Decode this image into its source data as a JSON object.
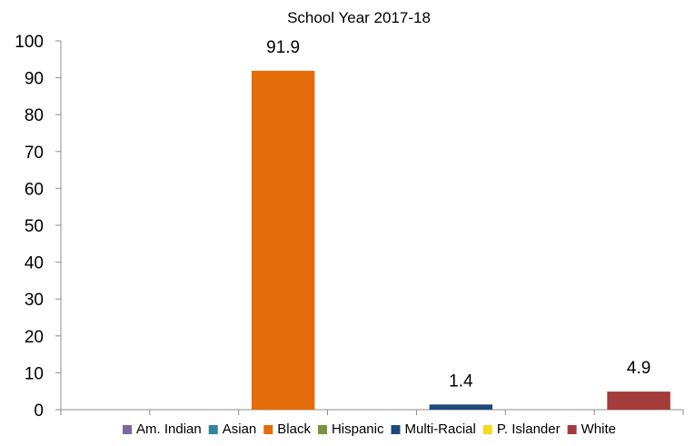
{
  "chart_data": {
    "type": "bar",
    "subtitle": "School Year 2017-18",
    "categories": [
      "Am. Indian",
      "Asian",
      "Black",
      "Hispanic",
      "Multi-Racial",
      "P. Islander",
      "White"
    ],
    "values": [
      0,
      0,
      91.9,
      0,
      1.4,
      0,
      4.9
    ],
    "data_labels": [
      "",
      "",
      "91.9",
      "",
      "1.4",
      "",
      "4.9"
    ],
    "colors": [
      "#8064A2",
      "#31859C",
      "#E46C0A",
      "#77933C",
      "#1F497D",
      "#F2DC1C",
      "#A33C3B"
    ],
    "ylim": [
      0,
      100
    ],
    "yticks": [
      "0",
      "10",
      "20",
      "30",
      "40",
      "50",
      "60",
      "70",
      "80",
      "90",
      "100"
    ],
    "grid": false,
    "legend_position": "bottom"
  }
}
